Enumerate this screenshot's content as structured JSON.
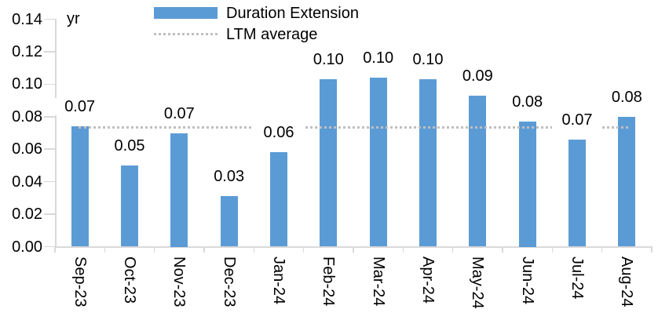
{
  "chart_data": {
    "type": "bar",
    "unit_label": "yr",
    "categories": [
      "Sep-23",
      "Oct-23",
      "Nov-23",
      "Dec-23",
      "Jan-24",
      "Feb-24",
      "Mar-24",
      "Apr-24",
      "May-24",
      "Jun-24",
      "Jul-24",
      "Aug-24"
    ],
    "series": [
      {
        "name": "Duration Extension",
        "values": [
          0.074,
          0.05,
          0.07,
          0.031,
          0.058,
          0.103,
          0.104,
          0.103,
          0.093,
          0.077,
          0.066,
          0.08
        ],
        "point_labels": [
          "0.07",
          "0.05",
          "0.07",
          "0.03",
          "0.06",
          "0.10",
          "0.10",
          "0.10",
          "0.09",
          "0.08",
          "0.07",
          "0.08"
        ]
      }
    ],
    "reference_line": {
      "name": "LTM average",
      "value": 0.073,
      "style": "dotted"
    },
    "y_axis": {
      "min": 0.0,
      "max": 0.14,
      "step": 0.02,
      "tick_labels": [
        "0.14",
        "0.12",
        "0.10",
        "0.08",
        "0.06",
        "0.04",
        "0.02",
        "0.00"
      ]
    },
    "x_axis": {
      "label_rotation_deg": 90
    },
    "legend_position": "top",
    "grid": false,
    "colors": {
      "bar": "#5B9BD5",
      "reference_line": "#BFBFBF",
      "axis": "#D9D9D9",
      "text": "#000000"
    }
  }
}
